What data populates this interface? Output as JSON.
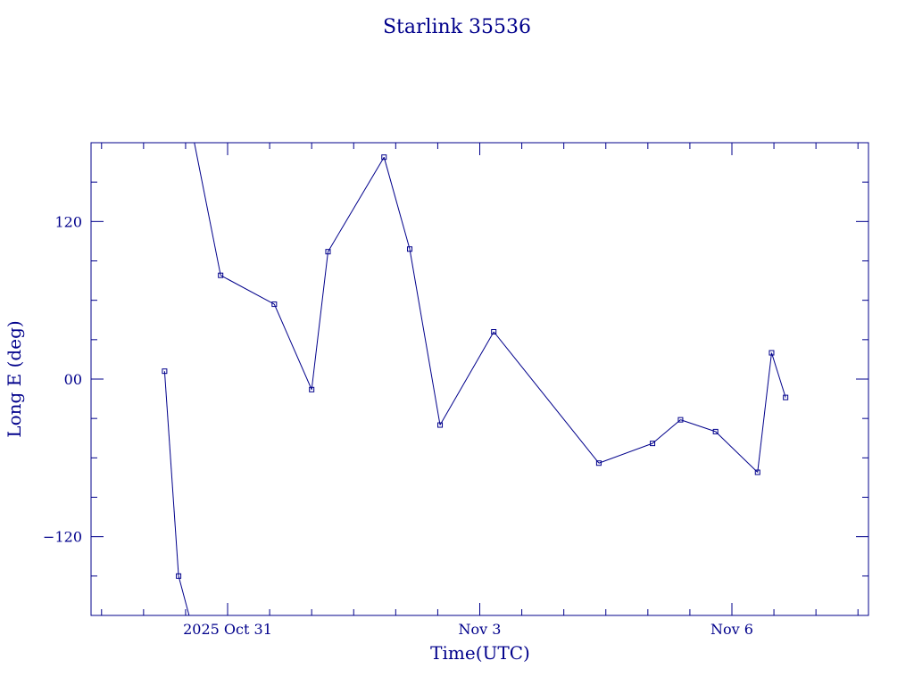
{
  "chart_data": {
    "type": "line",
    "title": "Starlink 35536",
    "xlabel": "Time(UTC)",
    "ylabel": "Long E (deg)",
    "xlim": [
      "2025-10-29T09:00Z",
      "2025-11-07T15:00Z"
    ],
    "ylim": [
      -180,
      180
    ],
    "x_ticks": [
      {
        "x": "2025-10-31T00:00Z",
        "label": "2025 Oct 31"
      },
      {
        "x": "2025-11-03T00:00Z",
        "label": "Nov  3"
      },
      {
        "x": "2025-11-06T00:00Z",
        "label": "Nov  6"
      }
    ],
    "y_ticks": [
      {
        "y": 120,
        "label": "120"
      },
      {
        "y": 0,
        "label": "00"
      },
      {
        "y": -120,
        "label": "−120"
      }
    ],
    "grid": false,
    "color": "#00008b",
    "series": [
      {
        "points": [
          {
            "x": "2025-10-30T06:00Z",
            "y": 6
          },
          {
            "x": "2025-10-30T10:00Z",
            "y": -150
          },
          {
            "x": "2025-10-30T13:00Z",
            "y": -180
          },
          {
            "break": true
          },
          {
            "x": "2025-10-30T14:30Z",
            "y": 180
          },
          {
            "x": "2025-10-30T22:00Z",
            "y": 79
          },
          {
            "x": "2025-10-31T13:20Z",
            "y": 57
          },
          {
            "x": "2025-11-01T00:00Z",
            "y": -8
          },
          {
            "x": "2025-11-01T04:40Z",
            "y": 97
          },
          {
            "x": "2025-11-01T20:40Z",
            "y": 169
          },
          {
            "x": "2025-11-02T04:00Z",
            "y": 99
          },
          {
            "x": "2025-11-02T12:40Z",
            "y": -35
          },
          {
            "x": "2025-11-03T04:00Z",
            "y": 36
          },
          {
            "x": "2025-11-04T10:00Z",
            "y": -64
          },
          {
            "x": "2025-11-05T01:20Z",
            "y": -49
          },
          {
            "x": "2025-11-05T09:20Z",
            "y": -31
          },
          {
            "x": "2025-11-05T19:20Z",
            "y": -40
          },
          {
            "x": "2025-11-06T07:20Z",
            "y": -71
          },
          {
            "x": "2025-11-06T11:20Z",
            "y": 20
          },
          {
            "x": "2025-11-06T15:20Z",
            "y": -14
          }
        ]
      }
    ]
  }
}
